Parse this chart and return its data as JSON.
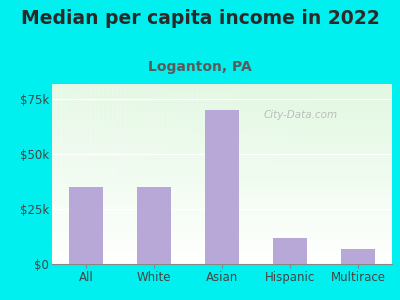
{
  "title": "Median per capita income in 2022",
  "subtitle": "Loganton, PA",
  "categories": [
    "All",
    "White",
    "Asian",
    "Hispanic",
    "Multirace"
  ],
  "values": [
    35000,
    35000,
    70000,
    12000,
    7000
  ],
  "bar_color": "#b8a8d8",
  "title_color": "#2a2a2a",
  "subtitle_color": "#5a5a5a",
  "outer_bg_color": "#00efef",
  "ylim": [
    0,
    82000
  ],
  "yticks": [
    0,
    25000,
    50000,
    75000
  ],
  "ytick_labels": [
    "$0",
    "$25k",
    "$50k",
    "$75k"
  ],
  "watermark": "City-Data.com",
  "title_fontsize": 13.5,
  "subtitle_fontsize": 10,
  "tick_fontsize": 8.5
}
